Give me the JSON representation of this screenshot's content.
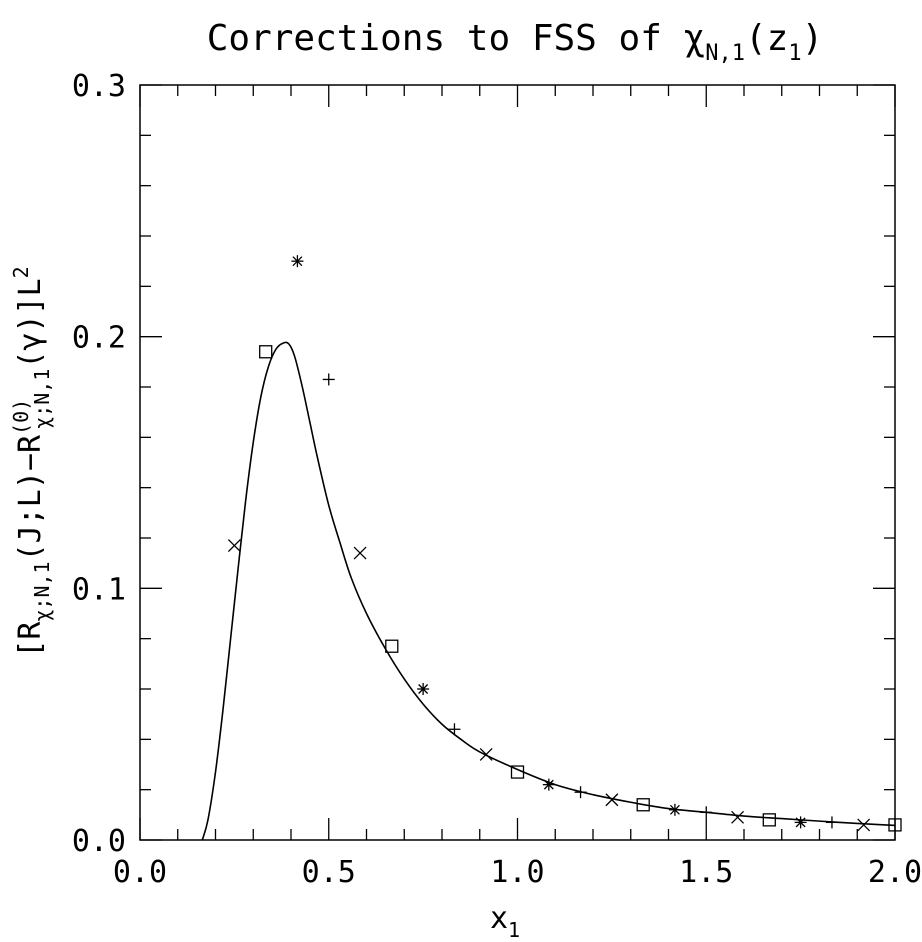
{
  "chart_data": {
    "type": "scatter",
    "title": "Corrections to FSS of χN,1(z1)",
    "title_parts": {
      "main": "Corrections to FSS of χ",
      "sub": "N,1",
      "arg_open": "(z",
      "arg_sub": "1",
      "arg_close": ")"
    },
    "xlabel_parts": {
      "main": "x",
      "sub": "1"
    },
    "ylabel_parts": {
      "p1": "[R",
      "p1_sub": "χ;N,1",
      "p2": "(J;L)−R",
      "p2_sub": "χ;N,1",
      "p2_sup": "(0)",
      "p3": "(γ)]L",
      "p3_sup": "2"
    },
    "xlim": [
      0.0,
      2.0
    ],
    "ylim": [
      0.0,
      0.3
    ],
    "x_ticks": [
      0.0,
      0.5,
      1.0,
      1.5,
      2.0
    ],
    "x_tick_labels": [
      "0.0",
      "0.5",
      "1.0",
      "1.5",
      "2.0"
    ],
    "y_ticks": [
      0.0,
      0.1,
      0.2,
      0.3
    ],
    "y_tick_labels": [
      "0.0",
      "0.1",
      "0.2",
      "0.3"
    ],
    "grid": false,
    "curve": {
      "x": [
        0.165,
        0.18,
        0.2,
        0.22,
        0.24,
        0.26,
        0.28,
        0.3,
        0.32,
        0.34,
        0.36,
        0.38,
        0.395,
        0.41,
        0.43,
        0.45,
        0.47,
        0.5,
        0.53,
        0.56,
        0.6,
        0.65,
        0.7,
        0.75,
        0.8,
        0.85,
        0.9,
        1.0,
        1.1,
        1.2,
        1.3,
        1.4,
        1.5,
        1.6,
        1.7,
        1.8,
        1.9,
        2.0
      ],
      "y": [
        0.0,
        0.008,
        0.027,
        0.052,
        0.08,
        0.108,
        0.135,
        0.158,
        0.176,
        0.188,
        0.195,
        0.1975,
        0.197,
        0.192,
        0.18,
        0.166,
        0.152,
        0.133,
        0.118,
        0.104,
        0.09,
        0.076,
        0.064,
        0.054,
        0.046,
        0.04,
        0.035,
        0.028,
        0.022,
        0.018,
        0.015,
        0.0125,
        0.011,
        0.0095,
        0.0085,
        0.0075,
        0.0066,
        0.0058
      ]
    },
    "series": [
      {
        "marker": "x",
        "x": [
          0.25,
          0.583,
          0.917,
          1.25,
          1.583,
          1.917
        ],
        "y": [
          0.117,
          0.114,
          0.034,
          0.016,
          0.009,
          0.006
        ]
      },
      {
        "marker": "square",
        "x": [
          0.333,
          0.667,
          1.0,
          1.333,
          1.667,
          2.0
        ],
        "y": [
          0.194,
          0.077,
          0.027,
          0.014,
          0.008,
          0.006
        ]
      },
      {
        "marker": "star",
        "x": [
          0.417,
          0.75,
          1.083,
          1.417,
          1.75
        ],
        "y": [
          0.23,
          0.06,
          0.022,
          0.012,
          0.007
        ]
      },
      {
        "marker": "plus",
        "x": [
          0.5,
          0.833,
          1.167,
          1.5,
          1.833
        ],
        "y": [
          0.183,
          0.044,
          0.019,
          0.011,
          0.007
        ]
      }
    ]
  }
}
